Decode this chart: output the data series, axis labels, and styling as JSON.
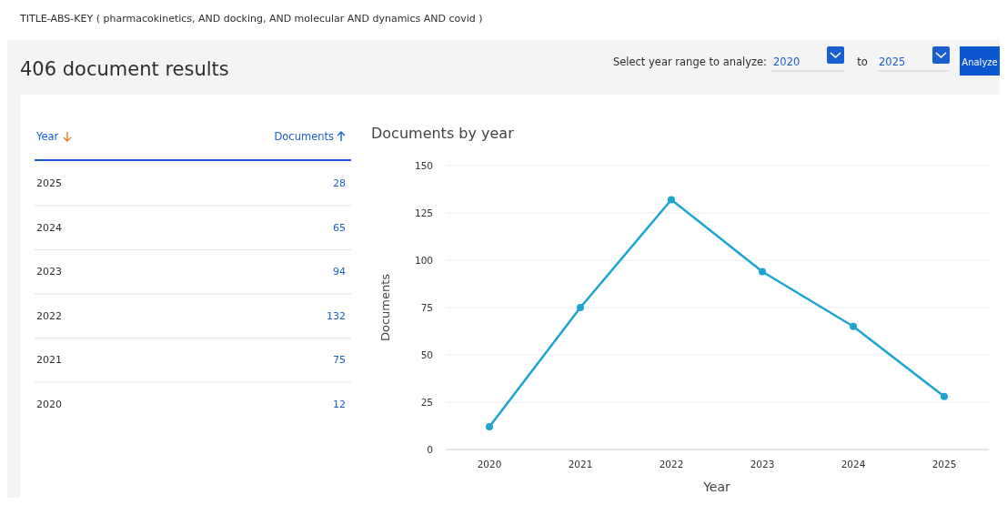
{
  "chart_data": [
    {
      "type": "heatmap",
      "ylabel": "Year",
      "categories": [
        "Documents"
      ],
      "y_categories": [
        "2025",
        "2024",
        "2023",
        "2022",
        "2021",
        "2020"
      ],
      "cells": [
        [
          28
        ],
        [
          65
        ],
        [
          94
        ],
        [
          132
        ],
        [
          75
        ],
        [
          12
        ]
      ],
      "data_labels": true,
      "annotations": [
        "TITLE-ABS-KEY ( pharmacokinetics,  AND  docking,  AND  molecular  AND  dynamics  AND covid )",
        "406 document results",
        "Select year range to analyze:",
        "2020",
        "to",
        "2025",
        "Analyze"
      ]
    },
    {
      "type": "line",
      "title": "Documents by year",
      "xlabel": "Year",
      "ylabel": "Documents",
      "categories": [
        "2020",
        "2021",
        "2022",
        "2023",
        "2024",
        "2025"
      ],
      "series": [
        {
          "color": "#1ba5d0",
          "values": [
            12,
            75,
            132,
            94,
            65,
            28
          ]
        }
      ],
      "ylim": [
        0,
        150
      ],
      "yticks": [
        0,
        25,
        50,
        75,
        100,
        125,
        150
      ],
      "grid": "y",
      "marker": "circle"
    }
  ]
}
